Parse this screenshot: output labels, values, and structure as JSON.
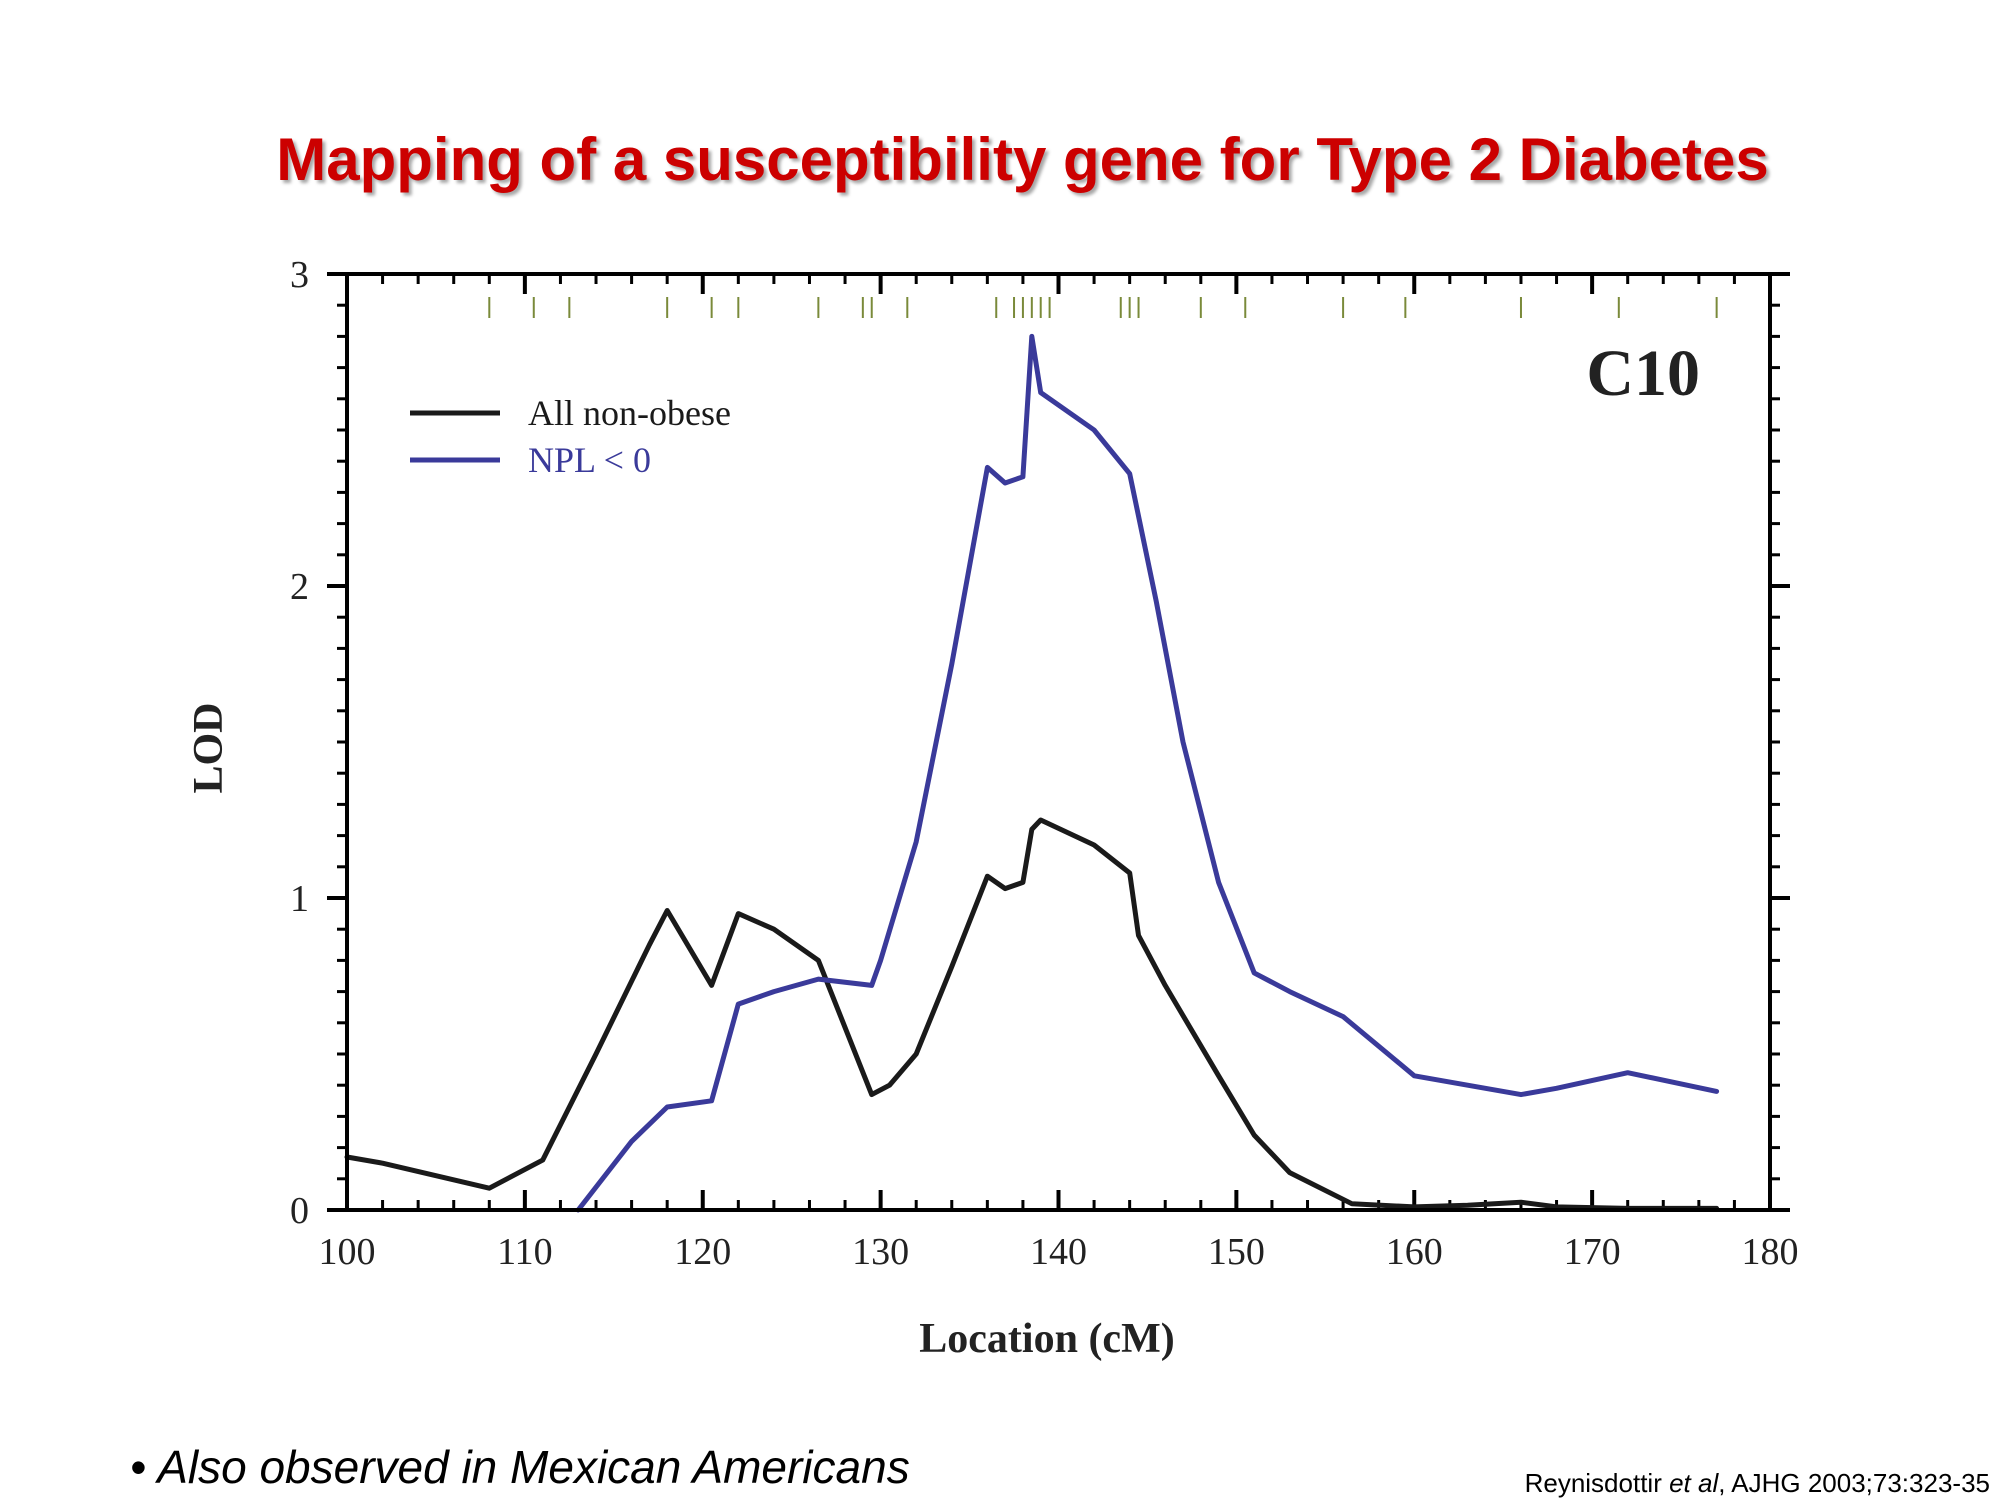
{
  "slide": {
    "title": "Mapping of a susceptibility gene for Type 2 Diabetes",
    "bullet_marker": "•",
    "bullet_text": "Also observed in Mexican Americans",
    "citation": {
      "author": "Reynisdottir",
      "et_al": "et al",
      "rest": ", AJHG 2003;73:323-35"
    }
  },
  "colors": {
    "title": "#cc0000",
    "series_black": "#1a1a1a",
    "series_blue": "#3a3a9a",
    "marker_ticks": "#7a8a3a"
  },
  "chart_data": {
    "type": "line",
    "panel_label": "C10",
    "xlabel": "Location (cM)",
    "ylabel": "LOD",
    "xlim": [
      100,
      180
    ],
    "ylim": [
      0,
      3
    ],
    "xticks": [
      "100",
      "110",
      "120",
      "130",
      "140",
      "150",
      "160",
      "170",
      "180"
    ],
    "yticks": [
      "0",
      "1",
      "2",
      "3"
    ],
    "legend_position": "top-left",
    "marker_positions": [
      108,
      110.5,
      112.5,
      118,
      120.5,
      122,
      126.5,
      129,
      129.5,
      131.5,
      136.5,
      137.5,
      138,
      138.5,
      139,
      139.5,
      143.5,
      144,
      144.5,
      148,
      150.5,
      156,
      159.5,
      166,
      171.5,
      177
    ],
    "series": [
      {
        "name": "All non-obese",
        "color": "#1a1a1a",
        "x": [
          100,
          102,
          108,
          111,
          114,
          117,
          118,
          120.5,
          122,
          124,
          126.5,
          129.5,
          130.5,
          132,
          134,
          136,
          137,
          138,
          138.5,
          139,
          142,
          144,
          144.5,
          146,
          149,
          151,
          153,
          156.5,
          160,
          163,
          166,
          168,
          172,
          177
        ],
        "y": [
          0.17,
          0.15,
          0.07,
          0.16,
          0.5,
          0.85,
          0.96,
          0.72,
          0.95,
          0.9,
          0.8,
          0.37,
          0.4,
          0.5,
          0.78,
          1.07,
          1.03,
          1.05,
          1.22,
          1.25,
          1.17,
          1.08,
          0.88,
          0.72,
          0.43,
          0.24,
          0.12,
          0.02,
          0.01,
          0.015,
          0.025,
          0.01,
          0.005,
          0.005
        ]
      },
      {
        "name": "NPL < 0",
        "color": "#3a3a9a",
        "x": [
          113,
          116,
          118,
          120.5,
          122,
          124,
          126.5,
          129.5,
          130,
          132,
          134,
          136,
          137,
          138,
          138.5,
          139,
          142,
          144,
          145.5,
          147,
          149,
          151,
          153,
          156,
          160,
          163,
          166,
          168,
          172,
          177
        ],
        "y": [
          0,
          0.22,
          0.33,
          0.35,
          0.66,
          0.7,
          0.74,
          0.72,
          0.8,
          1.18,
          1.75,
          2.38,
          2.33,
          2.35,
          2.8,
          2.62,
          2.5,
          2.36,
          1.95,
          1.5,
          1.05,
          0.76,
          0.7,
          0.62,
          0.43,
          0.4,
          0.37,
          0.39,
          0.44,
          0.38
        ]
      }
    ]
  }
}
